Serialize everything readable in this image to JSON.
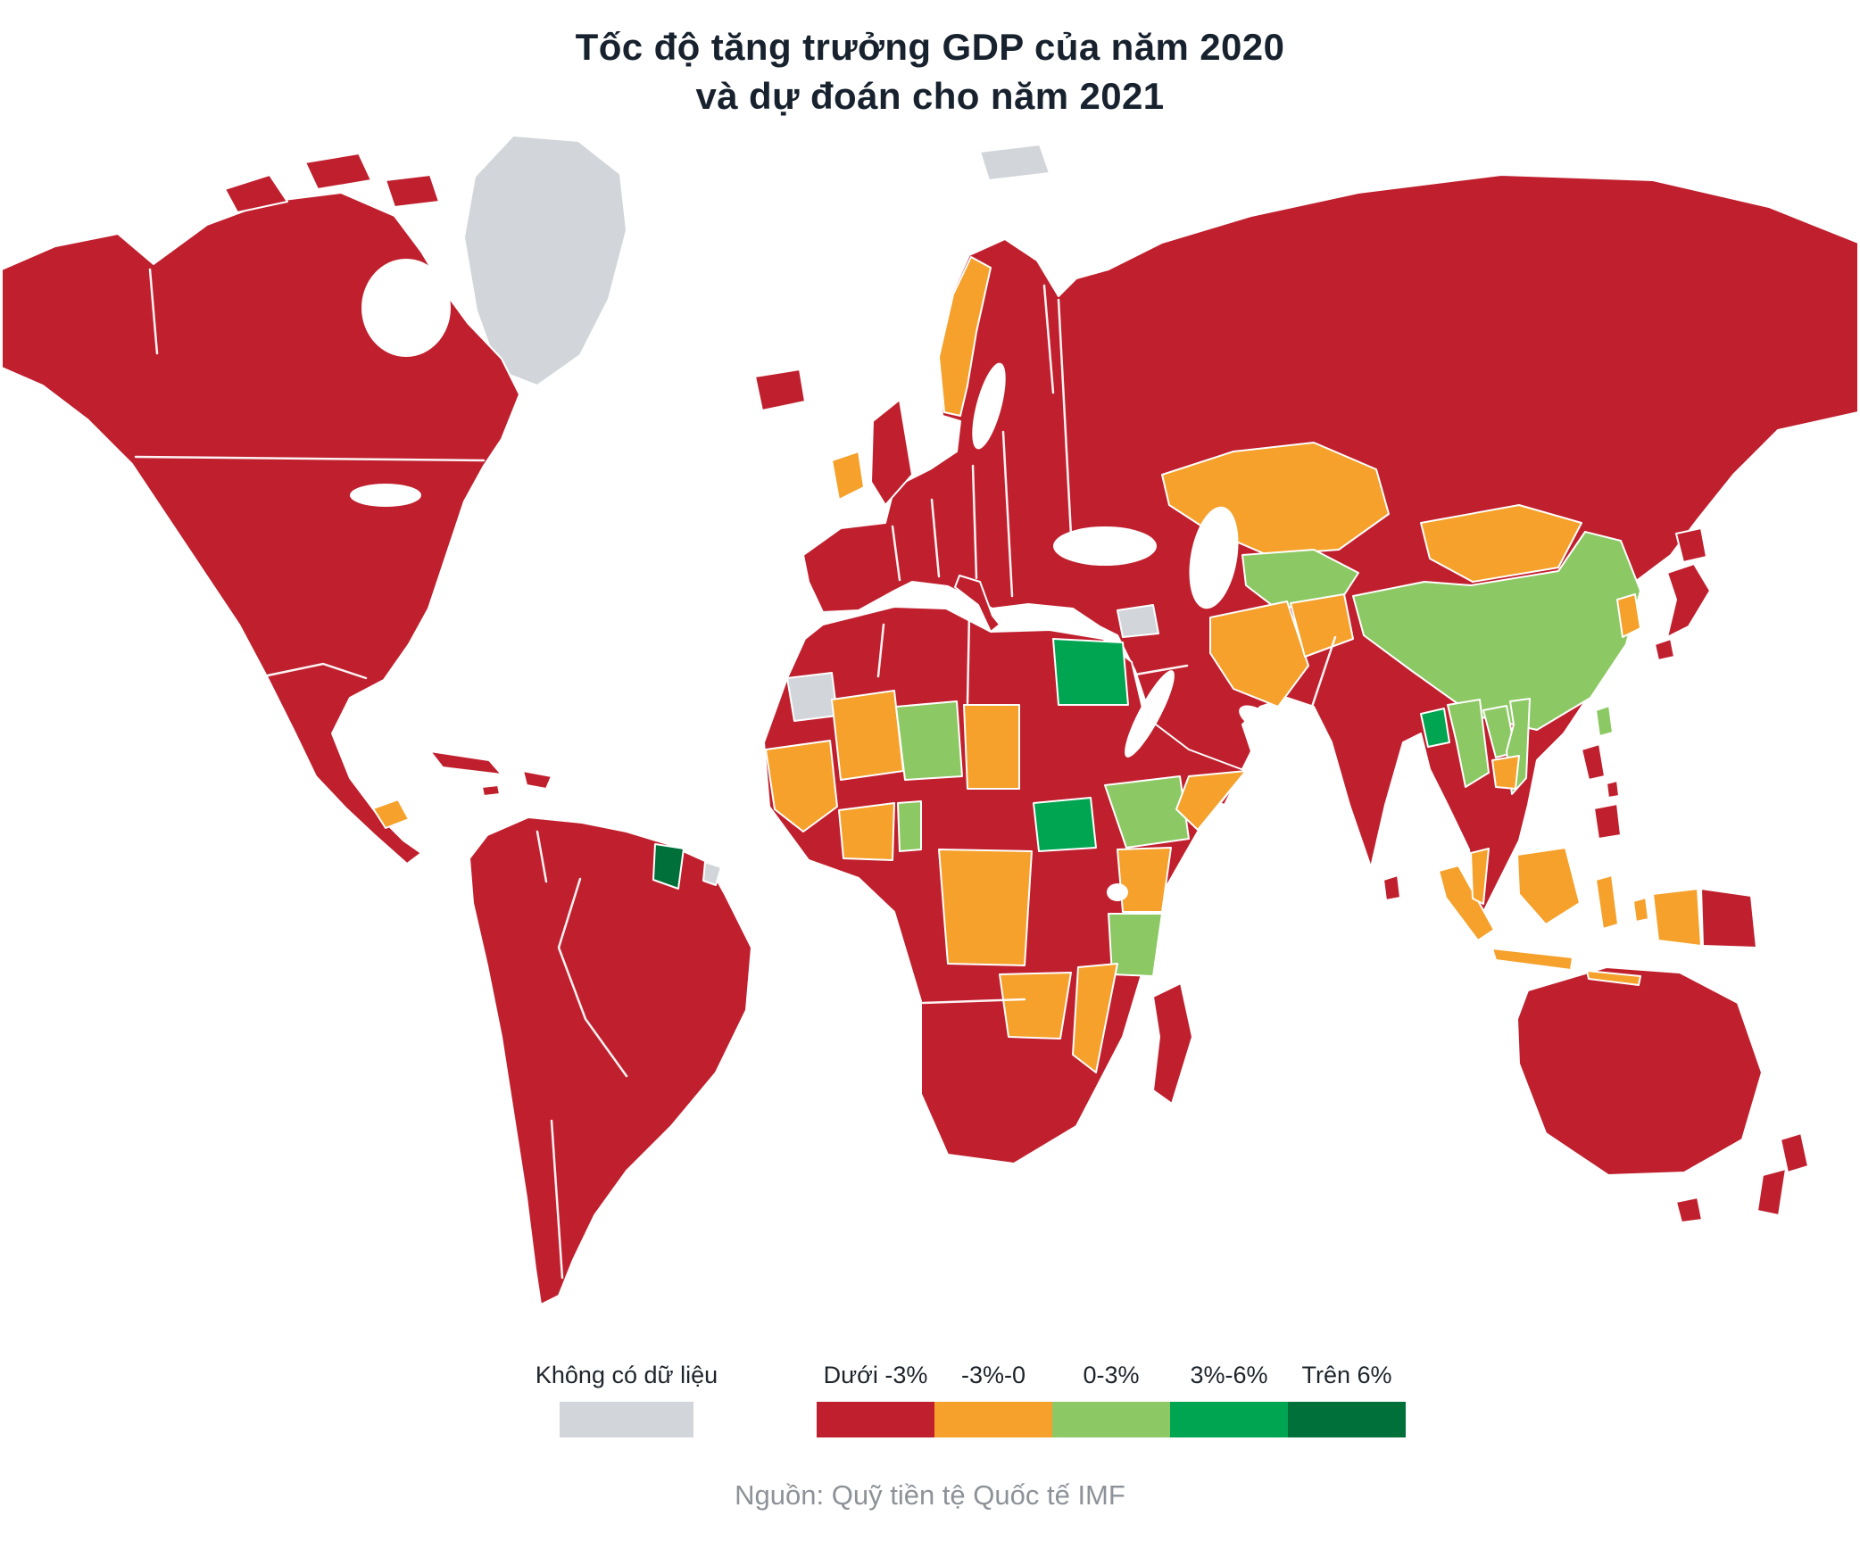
{
  "title": {
    "line1": "Tốc độ tăng trưởng GDP của năm 2020",
    "line2": "và dự đoán cho năm 2021"
  },
  "legend": {
    "no_data": {
      "label": "Không có dữ liệu",
      "color": "#d2d5d9"
    },
    "bins": [
      {
        "label": "Dưới -3%",
        "color": "#c0202e"
      },
      {
        "label": "-3%-0",
        "color": "#f5a12b"
      },
      {
        "label": "0-3%",
        "color": "#8cc863"
      },
      {
        "label": "3%-6%",
        "color": "#00a551"
      },
      {
        "label": "Trên 6%",
        "color": "#00703a"
      }
    ]
  },
  "source": "Nguồn: Quỹ tiền tệ Quốc tế IMF",
  "colors": {
    "nodata": "#d2d5d9",
    "bin-under": "#c0202e",
    "bin-neg": "#f5a12b",
    "bin-low": "#8cc863",
    "bin-mid": "#00a551",
    "bin-high": "#00703a",
    "title": "#17222e",
    "source": "#8d9298"
  },
  "chart_data": {
    "type": "heatmap",
    "subtype": "choropleth-world-map",
    "title": "Tốc độ tăng trưởng GDP của năm 2020 và dự đoán cho năm 2021",
    "source": "Nguồn: Quỹ tiền tệ Quốc tế IMF",
    "legend_position": "bottom",
    "bins": [
      "Không có dữ liệu",
      "Dưới -3%",
      "-3%-0",
      "0-3%",
      "3%-6%",
      "Trên 6%"
    ],
    "regions": [
      {
        "name": "Greenland",
        "bin": "Không có dữ liệu"
      },
      {
        "name": "Canada",
        "bin": "Dưới -3%"
      },
      {
        "name": "United States",
        "bin": "Dưới -3%"
      },
      {
        "name": "Mexico",
        "bin": "Dưới -3%"
      },
      {
        "name": "Guatemala",
        "bin": "-3%-0"
      },
      {
        "name": "Cuba",
        "bin": "Dưới -3%"
      },
      {
        "name": "Colombia",
        "bin": "Dưới -3%"
      },
      {
        "name": "Venezuela",
        "bin": "Dưới -3%"
      },
      {
        "name": "Guyana",
        "bin": "Trên 6%"
      },
      {
        "name": "Brazil",
        "bin": "Dưới -3%"
      },
      {
        "name": "Peru",
        "bin": "Dưới -3%"
      },
      {
        "name": "Argentina",
        "bin": "Dưới -3%"
      },
      {
        "name": "Chile",
        "bin": "Dưới -3%"
      },
      {
        "name": "Iceland",
        "bin": "Dưới -3%"
      },
      {
        "name": "United Kingdom",
        "bin": "Dưới -3%"
      },
      {
        "name": "Ireland",
        "bin": "-3%-0"
      },
      {
        "name": "Norway",
        "bin": "-3%-0"
      },
      {
        "name": "Sweden",
        "bin": "Dưới -3%"
      },
      {
        "name": "Finland",
        "bin": "Dưới -3%"
      },
      {
        "name": "France",
        "bin": "Dưới -3%"
      },
      {
        "name": "Spain",
        "bin": "Dưới -3%"
      },
      {
        "name": "Germany",
        "bin": "Dưới -3%"
      },
      {
        "name": "Italy",
        "bin": "Dưới -3%"
      },
      {
        "name": "Poland",
        "bin": "Dưới -3%"
      },
      {
        "name": "Russia",
        "bin": "Dưới -3%"
      },
      {
        "name": "Ukraine",
        "bin": "Dưới -3%"
      },
      {
        "name": "Turkey",
        "bin": "Dưới -3%"
      },
      {
        "name": "Syria",
        "bin": "Không có dữ liệu"
      },
      {
        "name": "Saudi Arabia",
        "bin": "Dưới -3%"
      },
      {
        "name": "Iran",
        "bin": "-3%-0"
      },
      {
        "name": "Afghanistan",
        "bin": "-3%-0"
      },
      {
        "name": "Kazakhstan",
        "bin": "-3%-0"
      },
      {
        "name": "Uzbekistan",
        "bin": "0-3%"
      },
      {
        "name": "Turkmenistan",
        "bin": "0-3%"
      },
      {
        "name": "Mongolia",
        "bin": "-3%-0"
      },
      {
        "name": "China",
        "bin": "0-3%"
      },
      {
        "name": "South Korea",
        "bin": "-3%-0"
      },
      {
        "name": "Japan",
        "bin": "Dưới -3%"
      },
      {
        "name": "Taiwan",
        "bin": "0-3%"
      },
      {
        "name": "India",
        "bin": "Dưới -3%"
      },
      {
        "name": "Pakistan",
        "bin": "Dưới -3%"
      },
      {
        "name": "Bangladesh",
        "bin": "3%-6%"
      },
      {
        "name": "Myanmar",
        "bin": "0-3%"
      },
      {
        "name": "Laos",
        "bin": "0-3%"
      },
      {
        "name": "Vietnam",
        "bin": "0-3%"
      },
      {
        "name": "Cambodia",
        "bin": "-3%-0"
      },
      {
        "name": "Thailand",
        "bin": "Dưới -3%"
      },
      {
        "name": "Malaysia",
        "bin": "-3%-0"
      },
      {
        "name": "Indonesia",
        "bin": "-3%-0"
      },
      {
        "name": "Philippines",
        "bin": "Dưới -3%"
      },
      {
        "name": "Papua New Guinea",
        "bin": "Dưới -3%"
      },
      {
        "name": "Australia",
        "bin": "Dưới -3%"
      },
      {
        "name": "New Zealand",
        "bin": "Dưới -3%"
      },
      {
        "name": "Morocco",
        "bin": "Dưới -3%"
      },
      {
        "name": "Western Sahara",
        "bin": "Không có dữ liệu"
      },
      {
        "name": "Algeria",
        "bin": "Dưới -3%"
      },
      {
        "name": "Libya",
        "bin": "Dưới -3%"
      },
      {
        "name": "Egypt",
        "bin": "3%-6%"
      },
      {
        "name": "Senegal",
        "bin": "-3%-0"
      },
      {
        "name": "Guinea",
        "bin": "-3%-0"
      },
      {
        "name": "Mali",
        "bin": "-3%-0"
      },
      {
        "name": "Niger",
        "bin": "0-3%"
      },
      {
        "name": "Chad",
        "bin": "-3%-0"
      },
      {
        "name": "Nigeria",
        "bin": "Dưới -3%"
      },
      {
        "name": "Ghana",
        "bin": "-3%-0"
      },
      {
        "name": "Côte d'Ivoire",
        "bin": "-3%-0"
      },
      {
        "name": "Benin",
        "bin": "0-3%"
      },
      {
        "name": "Sudan",
        "bin": "Dưới -3%"
      },
      {
        "name": "South Sudan",
        "bin": "3%-6%"
      },
      {
        "name": "Ethiopia",
        "bin": "0-3%"
      },
      {
        "name": "Somalia",
        "bin": "-3%-0"
      },
      {
        "name": "Kenya",
        "bin": "-3%-0"
      },
      {
        "name": "Tanzania",
        "bin": "0-3%"
      },
      {
        "name": "DR Congo",
        "bin": "-3%-0"
      },
      {
        "name": "Zambia",
        "bin": "-3%-0"
      },
      {
        "name": "Zimbabwe",
        "bin": "-3%-0"
      },
      {
        "name": "Mozambique",
        "bin": "-3%-0"
      },
      {
        "name": "Angola",
        "bin": "Dưới -3%"
      },
      {
        "name": "Namibia",
        "bin": "Dưới -3%"
      },
      {
        "name": "Botswana",
        "bin": "Dưới -3%"
      },
      {
        "name": "South Africa",
        "bin": "Dưới -3%"
      },
      {
        "name": "Madagascar",
        "bin": "Dưới -3%"
      }
    ]
  }
}
